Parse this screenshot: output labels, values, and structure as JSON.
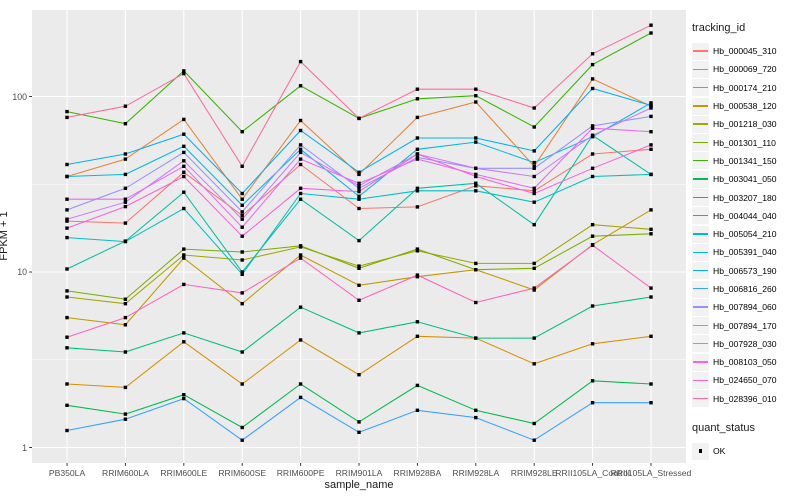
{
  "figure": {
    "y_axis_title": "FPKM + 1",
    "x_axis_title": "sample_name",
    "panel_bg": "#EBEBEB",
    "grid_color": "#FFFFFF",
    "key_bg": "#F2F2F2",
    "tick_color": "#333333",
    "tick_label_color": "#4D4D4D",
    "point_color": "#000000",
    "legend": {
      "tracking_title": "tracking_id",
      "quant_title": "quant_status",
      "quant_items": [
        {
          "label": "OK",
          "shape": "black-square"
        }
      ]
    }
  },
  "chart_data": {
    "type": "line",
    "x_scale": "categorical",
    "y_scale": "log10",
    "title": "",
    "xlabel": "sample_name",
    "ylabel": "FPKM + 1",
    "y_ticks": [
      1,
      10,
      100
    ],
    "y_tick_labels": [
      "1",
      "10",
      "100"
    ],
    "y_minor_ticks": [
      3.162,
      31.62,
      316.2
    ],
    "ylim": [
      0.81,
      314
    ],
    "grid": true,
    "legend_position": "right",
    "point_shape": "filled-square",
    "categories": [
      "PB350LA",
      "RRIM600LA",
      "RRIM600LE",
      "RRIM600SE",
      "RRIM600PE",
      "RRIM901LA",
      "RRIM928BA",
      "RRIM928LA",
      "RRIM928LE",
      "RRII105LA_Control",
      "RRII105LA_Stressed"
    ],
    "series": [
      {
        "name": "Hb_000045_310",
        "color": "#F8766D",
        "values": [
          19.5,
          19,
          37,
          21,
          41,
          23,
          23.5,
          31,
          29,
          47,
          50
        ]
      },
      {
        "name": "Hb_000069_720",
        "color": "#EA8331",
        "values": [
          35,
          44,
          74,
          26,
          73,
          36,
          76,
          93,
          40,
          126,
          88
        ]
      },
      {
        "name": "Hb_000174_210",
        "color": "#D89000",
        "values": [
          2.3,
          2.2,
          4.0,
          2.3,
          4.1,
          2.6,
          4.3,
          4.2,
          3.0,
          3.9,
          4.3
        ]
      },
      {
        "name": "Hb_000538_120",
        "color": "#C09B00",
        "values": [
          5.5,
          5.0,
          12,
          6.6,
          12.5,
          8.4,
          9.4,
          10.3,
          7.9,
          14.3,
          22.6
        ]
      },
      {
        "name": "Hb_001218_030",
        "color": "#A3A500",
        "values": [
          7.2,
          6.6,
          12.5,
          11.7,
          13.9,
          10.8,
          13.2,
          11.2,
          11.2,
          18.6,
          17.5
        ]
      },
      {
        "name": "Hb_001301_110",
        "color": "#7CAE00",
        "values": [
          7.8,
          7.0,
          13.5,
          13.0,
          14.1,
          10.5,
          13.5,
          10.3,
          10.5,
          16.0,
          16.5
        ]
      },
      {
        "name": "Hb_001341_150",
        "color": "#39B600",
        "values": [
          82,
          70,
          140,
          63,
          115,
          75,
          97,
          101,
          67,
          152,
          230
        ]
      },
      {
        "name": "Hb_003041_050",
        "color": "#00BB4E",
        "values": [
          1.74,
          1.55,
          2.0,
          1.3,
          2.3,
          1.4,
          2.26,
          1.63,
          1.37,
          2.4,
          2.3
        ]
      },
      {
        "name": "Hb_003207_180",
        "color": "#00BF7D",
        "values": [
          3.7,
          3.5,
          4.5,
          3.5,
          6.3,
          4.5,
          5.2,
          4.2,
          4.2,
          6.4,
          7.2
        ]
      },
      {
        "name": "Hb_004044_040",
        "color": "#00C1A3",
        "values": [
          10.4,
          15,
          28.5,
          10,
          26,
          15.1,
          30,
          32,
          18.6,
          60,
          36
        ]
      },
      {
        "name": "Hb_005054_210",
        "color": "#00BFC4",
        "values": [
          15.7,
          14.9,
          23,
          9.7,
          28,
          26,
          29,
          29,
          25,
          35,
          36
        ]
      },
      {
        "name": "Hb_005391_040",
        "color": "#00BAE0",
        "values": [
          35,
          36,
          52,
          24,
          50,
          27,
          50,
          55,
          42,
          59,
          92
        ]
      },
      {
        "name": "Hb_006573_190",
        "color": "#00B0F6",
        "values": [
          41,
          47,
          61,
          28,
          64,
          37,
          58,
          58,
          49,
          111,
          89
        ]
      },
      {
        "name": "Hb_006816_260",
        "color": "#35A2FF",
        "values": [
          1.25,
          1.45,
          1.9,
          1.1,
          1.93,
          1.22,
          1.63,
          1.48,
          1.1,
          1.8,
          1.8
        ]
      },
      {
        "name": "Hb_007894_060",
        "color": "#9590FF",
        "values": [
          22.6,
          30,
          48,
          22,
          53,
          30,
          45,
          39,
          39,
          68,
          77
        ]
      },
      {
        "name": "Hb_007894_170",
        "color": "#C77CFF",
        "values": [
          20,
          25,
          43,
          20,
          48,
          31,
          47,
          39,
          35,
          60,
          86
        ]
      },
      {
        "name": "Hb_007928_030",
        "color": "#E76BF3",
        "values": [
          26,
          26,
          40,
          18,
          44,
          32,
          44,
          36,
          30,
          66,
          63
        ]
      },
      {
        "name": "Hb_008103_050",
        "color": "#FA62DB",
        "values": [
          17.8,
          23.6,
          35,
          16,
          30,
          28.7,
          47,
          35,
          28,
          39,
          53
        ]
      },
      {
        "name": "Hb_024650_070",
        "color": "#FF62BC",
        "values": [
          4.25,
          5.5,
          8.5,
          7.6,
          12,
          6.9,
          9.6,
          6.7,
          8.1,
          14.2,
          8.1
        ]
      },
      {
        "name": "Hb_028396_010",
        "color": "#FF6A98",
        "values": [
          76,
          88,
          135,
          40,
          158,
          75,
          110,
          110,
          86,
          175,
          255
        ]
      }
    ]
  }
}
